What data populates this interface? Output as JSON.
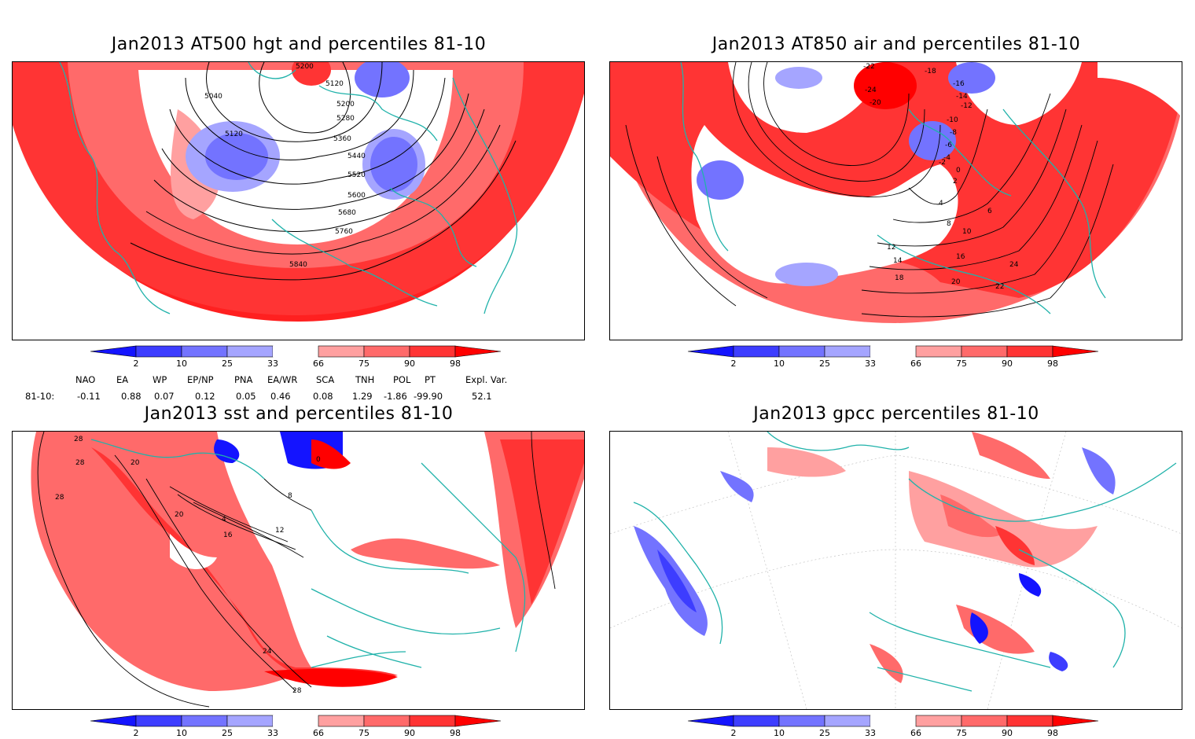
{
  "panels": [
    {
      "id": "p1",
      "title": "Jan2013 AT500 hgt and percentiles 81-10",
      "contour_labels": [
        "5200",
        "5040",
        "5120",
        "5200",
        "5280",
        "5120",
        "5360",
        "5440",
        "5520",
        "5600",
        "5680",
        "5760",
        "5840"
      ]
    },
    {
      "id": "p2",
      "title": "Jan2013 AT850 air and percentiles 81-10",
      "contour_labels": [
        "-22",
        "-24",
        "-20",
        "-18",
        "-16",
        "-14",
        "-12",
        "-10",
        "-8",
        "-6",
        "-4",
        "-2",
        "0",
        "2",
        "4",
        "6",
        "8",
        "10",
        "12",
        "14",
        "16",
        "18",
        "20",
        "22",
        "24"
      ]
    },
    {
      "id": "p3",
      "title": "Jan2013 sst and percentiles 81-10",
      "contour_labels": [
        "28",
        "28",
        "28",
        "20",
        "20",
        "16",
        "12",
        "8",
        "4",
        "0",
        "24",
        "28"
      ]
    },
    {
      "id": "p4",
      "title": "Jan2013 gpcc percentiles 81-10",
      "contour_labels": []
    }
  ],
  "colorbar": {
    "ticks": [
      "2",
      "10",
      "25",
      "33",
      "66",
      "75",
      "90",
      "98"
    ],
    "colors": [
      "#1414ff",
      "#3d3dff",
      "#7373ff",
      "#a5a5ff",
      "#ffffff",
      "#ffa0a0",
      "#ff6a6a",
      "#ff3434",
      "#ff0000"
    ]
  },
  "teleconnections": {
    "header": [
      "NAO",
      "EA",
      "WP",
      "EP/NP",
      "PNA",
      "EA/WR",
      "SCA",
      "TNH",
      "POL",
      "PT",
      "Expl. Var."
    ],
    "row_label": "81-10:",
    "values": [
      "-0.11",
      "0.88",
      "0.07",
      "0.12",
      "0.05",
      "0.46",
      "0.08",
      "1.29",
      "-1.86",
      "-99.90",
      "52.1"
    ]
  }
}
